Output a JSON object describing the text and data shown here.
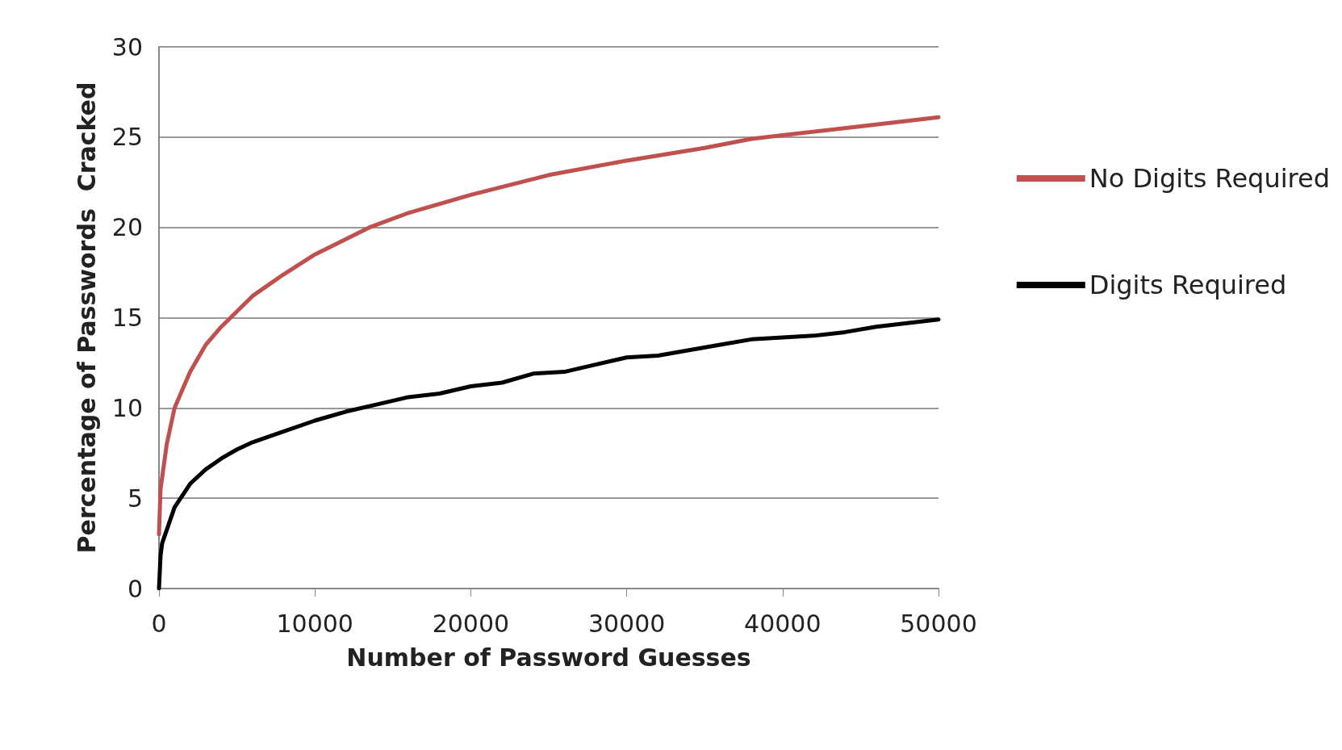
{
  "chart_data": {
    "type": "line",
    "xlabel": "Number of Password Guesses",
    "ylabel": "Percentage of Passwords  Cracked",
    "xlim": [
      0,
      50000
    ],
    "xticks": [
      0,
      10000,
      20000,
      30000,
      40000,
      50000
    ],
    "ylim": [
      0,
      30
    ],
    "yticks": [
      0,
      5,
      10,
      15,
      20,
      25,
      30
    ],
    "grid": "y",
    "legend": "right",
    "marker": "none",
    "line_style": "solid",
    "series": [
      {
        "name": "No Digits Required",
        "color": "#c0504d",
        "x": [
          0,
          100,
          500,
          1000,
          2000,
          3000,
          4000,
          6000,
          8000,
          10000,
          13500,
          16000,
          20000,
          25000,
          30000,
          35000,
          38000,
          40000,
          45000,
          50000
        ],
        "values": [
          3,
          5.5,
          8,
          10,
          12,
          13.5,
          14.5,
          16.2,
          17.4,
          18.5,
          20,
          20.8,
          21.8,
          22.9,
          23.7,
          24.4,
          24.9,
          25.1,
          25.6,
          26.1
        ]
      },
      {
        "name": "Digits Required",
        "color": "#000000",
        "x": [
          0,
          100,
          200,
          1000,
          2000,
          3000,
          4000,
          5000,
          6000,
          8000,
          10000,
          12000,
          14000,
          16000,
          18000,
          20000,
          22000,
          24000,
          26000,
          28000,
          30000,
          32000,
          34000,
          36000,
          38000,
          40000,
          42000,
          44000,
          46000,
          48000,
          50000
        ],
        "values": [
          0,
          1.8,
          2.5,
          4.5,
          5.8,
          6.6,
          7.2,
          7.7,
          8.1,
          8.7,
          9.3,
          9.8,
          10.2,
          10.6,
          10.8,
          11.2,
          11.4,
          11.9,
          12,
          12.4,
          12.8,
          12.9,
          13.2,
          13.5,
          13.8,
          13.9,
          14,
          14.2,
          14.5,
          14.7,
          14.9
        ]
      }
    ]
  }
}
